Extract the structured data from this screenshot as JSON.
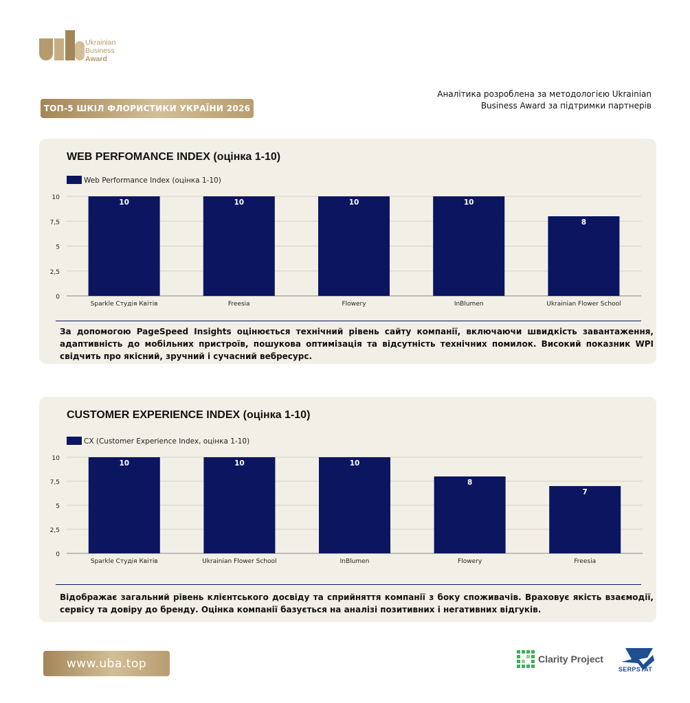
{
  "brand": {
    "logo_line1": "Ukrainian",
    "logo_line2": "Business",
    "logo_line3": "Award",
    "accent_gold": "#b49a6c",
    "bar_color": "#0b1560"
  },
  "header": {
    "badge": "ТОП-5 ШКІЛ ФЛОРИСТИКИ УКРАЇНИ 2026",
    "method_line1": "Аналітика розроблена за методологією Ukrainian",
    "method_line2": "Business Award за підтримки партнерів"
  },
  "section1": {
    "title": "WEB PERFOMANCE INDEX (оцінка 1-10)",
    "description": "За допомогою PageSpeed Insights оцінюється технічний рівень сайту компанії, включаючи швидкість завантаження, адаптивність до мобільних пристроїв, пошукова оптимізація та відсутність технічних помилок. Високий показник WPI свідчить про якісний, зручний і сучасний вебресурс."
  },
  "section2": {
    "title": "CUSTOMER EXPERIENCE INDEX (оцінка 1-10)",
    "description": "Відображає загальний рівень клієнтського досвіду та сприйняття компанії з боку споживачів. Враховує якість взаємодії, сервісу та довіру до бренду. Оцінка компанії базується на аналізі позитивних і негативних відгуків."
  },
  "chart_data": [
    {
      "type": "bar",
      "legend": "Web Performance Index (оцінка 1-10)",
      "legend_position": "top-left",
      "categories": [
        "Sparkle Студія Квітів",
        "Freesia",
        "Flowery",
        "InBlumen",
        "Ukrainian Flower School"
      ],
      "values": [
        10,
        10,
        10,
        10,
        8
      ],
      "ylim": [
        0,
        10
      ],
      "yticks": [
        0,
        2.5,
        5,
        7.5,
        10
      ],
      "ytick_labels": [
        "0",
        "2,5",
        "5",
        "7,5",
        "10"
      ],
      "grid": true
    },
    {
      "type": "bar",
      "legend": "CX (Customer Experience Index, оцінка 1-10)",
      "legend_position": "top-left",
      "categories": [
        "Sparkle Студія Квітів",
        "Ukrainian Flower School",
        "InBlumen",
        "Flowery",
        "Freesia"
      ],
      "values": [
        10,
        10,
        10,
        8,
        7
      ],
      "ylim": [
        0,
        10
      ],
      "yticks": [
        0,
        2.5,
        5,
        7.5,
        10
      ],
      "ytick_labels": [
        "0",
        "2,5",
        "5",
        "7,5",
        "10"
      ],
      "grid": true
    }
  ],
  "footer": {
    "url": "www.uba.top",
    "partner1": "Clarity Project",
    "partner2": "SERPSTAT"
  }
}
